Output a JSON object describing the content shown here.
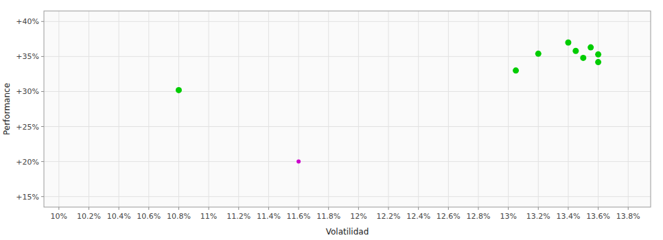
{
  "chart_data": {
    "type": "scatter",
    "xlabel": "Volatilidad",
    "ylabel": "Performance",
    "xlim": [
      0.099,
      0.1395
    ],
    "ylim": [
      0.135,
      0.415
    ],
    "xticks": [
      {
        "value": 0.1,
        "label": "10%"
      },
      {
        "value": 0.102,
        "label": "10.2%"
      },
      {
        "value": 0.104,
        "label": "10.4%"
      },
      {
        "value": 0.106,
        "label": "10.6%"
      },
      {
        "value": 0.108,
        "label": "10.8%"
      },
      {
        "value": 0.11,
        "label": "11%"
      },
      {
        "value": 0.112,
        "label": "11.2%"
      },
      {
        "value": 0.114,
        "label": "11.4%"
      },
      {
        "value": 0.116,
        "label": "11.6%"
      },
      {
        "value": 0.118,
        "label": "11.8%"
      },
      {
        "value": 0.12,
        "label": "12%"
      },
      {
        "value": 0.122,
        "label": "12.2%"
      },
      {
        "value": 0.124,
        "label": "12.4%"
      },
      {
        "value": 0.126,
        "label": "12.6%"
      },
      {
        "value": 0.128,
        "label": "12.8%"
      },
      {
        "value": 0.13,
        "label": "13%"
      },
      {
        "value": 0.132,
        "label": "13.2%"
      },
      {
        "value": 0.134,
        "label": "13.4%"
      },
      {
        "value": 0.136,
        "label": "13.6%"
      },
      {
        "value": 0.138,
        "label": "13.8%"
      }
    ],
    "yticks": [
      {
        "value": 0.15,
        "label": "+15%"
      },
      {
        "value": 0.2,
        "label": "+20%"
      },
      {
        "value": 0.25,
        "label": "+25%"
      },
      {
        "value": 0.3,
        "label": "+30%"
      },
      {
        "value": 0.35,
        "label": "+35%"
      },
      {
        "value": 0.4,
        "label": "+40%"
      }
    ],
    "grid": true,
    "series": [
      {
        "color": "#00cc00",
        "x": [
          0.108,
          0.1305,
          0.132,
          0.134,
          0.1345,
          0.135,
          0.1355,
          0.136,
          0.136
        ],
        "values": [
          0.302,
          0.33,
          0.354,
          0.37,
          0.358,
          0.348,
          0.363,
          0.353,
          0.342
        ]
      },
      {
        "color": "#cc00cc",
        "x": [
          0.116
        ],
        "values": [
          0.2
        ]
      }
    ]
  }
}
